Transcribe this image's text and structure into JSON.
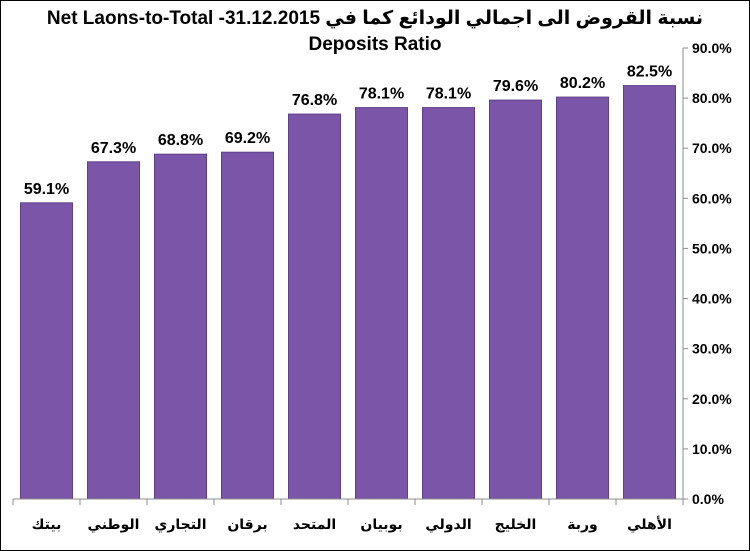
{
  "chart_data": {
    "type": "bar",
    "title_line1": "نسبة القروض الى اجمالي الودائع كما في 31.12.2015-   Net Laons-to-Total",
    "title_line2": "Deposits Ratio",
    "categories": [
      "بيتك",
      "الوطني",
      "التجاري",
      "برقان",
      "المتحد",
      "بوبيان",
      "الدولي",
      "الخليج",
      "وربة",
      "الأهلي"
    ],
    "values": [
      59.1,
      67.3,
      68.8,
      69.2,
      76.8,
      78.1,
      78.1,
      79.6,
      80.2,
      82.5
    ],
    "value_labels": [
      "59.1%",
      "67.3%",
      "68.8%",
      "69.2%",
      "76.8%",
      "78.1%",
      "78.1%",
      "79.6%",
      "80.2%",
      "82.5%"
    ],
    "y_ticks": [
      0,
      10,
      20,
      30,
      40,
      50,
      60,
      70,
      80,
      90
    ],
    "y_tick_labels": [
      "0.0%",
      "10.0%",
      "20.0%",
      "30.0%",
      "40.0%",
      "50.0%",
      "60.0%",
      "70.0%",
      "80.0%",
      "90.0%"
    ],
    "ylim": [
      0,
      90
    ],
    "y_axis_side": "right",
    "grid": false,
    "legend": "none",
    "bar_color": "#7B56A8",
    "bar_edge_color": "#5E3F8A"
  }
}
